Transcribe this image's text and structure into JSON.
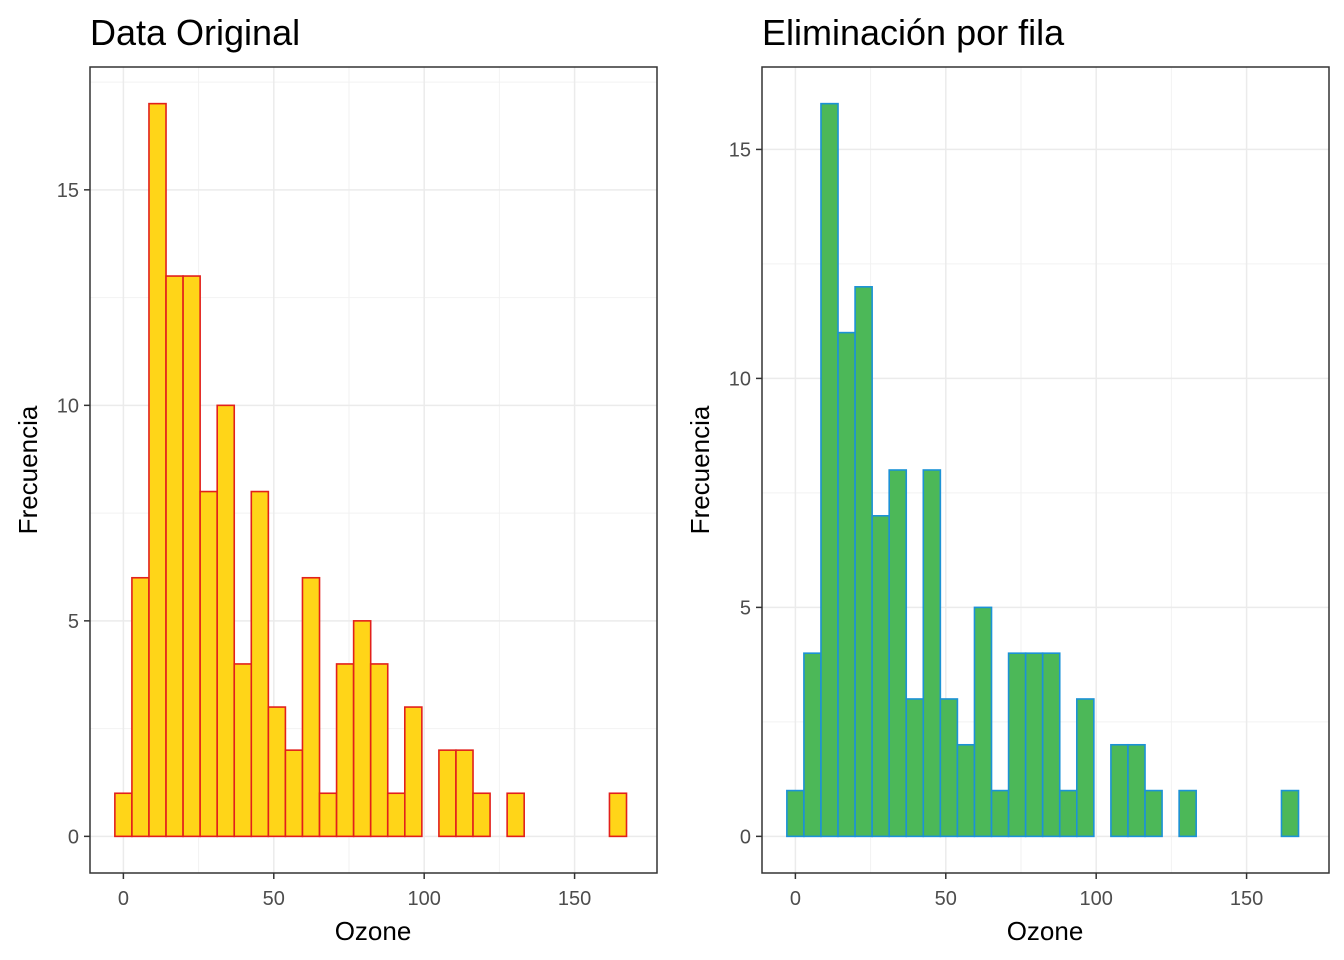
{
  "chart_data": [
    {
      "type": "bar",
      "title": "Data Original",
      "xlabel": "Ozone",
      "ylabel": "Frecuencia",
      "bin_width": 5.67,
      "first_bin_center": 0,
      "values": [
        1,
        6,
        17,
        13,
        13,
        8,
        10,
        4,
        8,
        3,
        2,
        6,
        1,
        4,
        5,
        4,
        1,
        3,
        0,
        2,
        2,
        1,
        0,
        1,
        0,
        0,
        0,
        0,
        0,
        1
      ],
      "xlim": [
        -11.1,
        177.4
      ],
      "ylim": [
        -0.85,
        17.85
      ],
      "xticks": [
        0,
        50,
        100,
        150
      ],
      "yticks": [
        0,
        5,
        10,
        15
      ],
      "grid": true,
      "fill": "#FFD518",
      "stroke": "#E2201B"
    },
    {
      "type": "bar",
      "title": "Eliminación por fila",
      "xlabel": "Ozone",
      "ylabel": "Frecuencia",
      "bin_width": 5.67,
      "first_bin_center": 0,
      "values": [
        1,
        4,
        16,
        11,
        12,
        7,
        8,
        3,
        8,
        3,
        2,
        5,
        1,
        4,
        4,
        4,
        1,
        3,
        0,
        2,
        2,
        1,
        0,
        1,
        0,
        0,
        0,
        0,
        0,
        1
      ],
      "xlim": [
        -11.1,
        177.4
      ],
      "ylim": [
        -0.8,
        16.8
      ],
      "xticks": [
        0,
        50,
        100,
        150
      ],
      "yticks": [
        0,
        5,
        10,
        15
      ],
      "grid": true,
      "fill": "#4CB858",
      "stroke": "#1C92D6"
    }
  ]
}
